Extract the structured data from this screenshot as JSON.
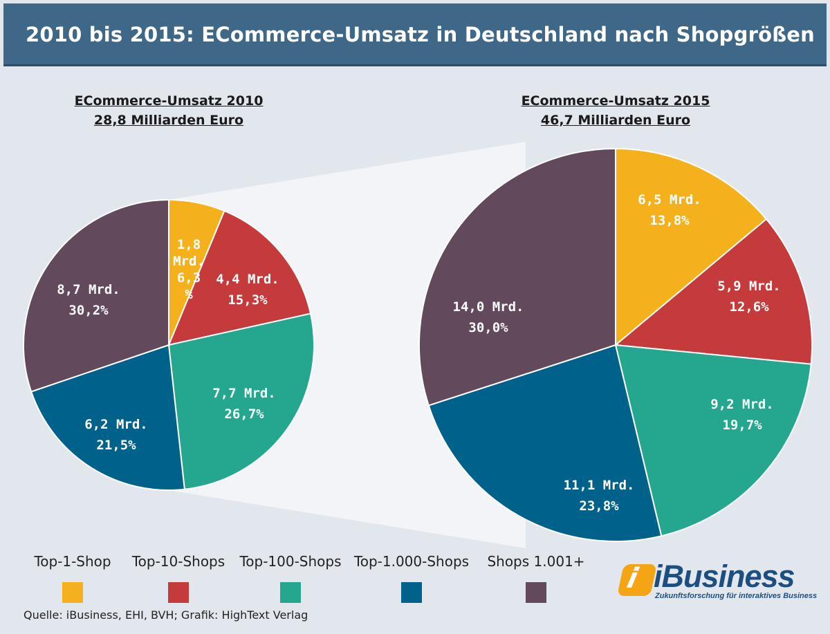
{
  "header": {
    "title": "2010 bis 2015: ECommerce-Umsatz in Deutschland nach Shopgrößen"
  },
  "colors": {
    "top1": "#f5b11c",
    "top10": "#c53a3a",
    "top100": "#25a68e",
    "top1000": "#00628a",
    "rest": "#62495c"
  },
  "chart_data": [
    {
      "type": "pie",
      "title": "ECommerce-Umsatz 2010",
      "subtitle": "28,8 Milliarden Euro",
      "slices": [
        {
          "name": "Top-1-Shop",
          "value": 1.8,
          "percent": 6.3,
          "value_label": "1,8 Mrd.",
          "percent_label": "6,3 %"
        },
        {
          "name": "Top-10-Shops",
          "value": 4.4,
          "percent": 15.3,
          "value_label": "4,4 Mrd.",
          "percent_label": "15,3%"
        },
        {
          "name": "Top-100-Shops",
          "value": 7.7,
          "percent": 26.7,
          "value_label": "7,7 Mrd.",
          "percent_label": "26,7%"
        },
        {
          "name": "Top-1.000-Shops",
          "value": 6.2,
          "percent": 21.5,
          "value_label": "6,2 Mrd.",
          "percent_label": "21,5%"
        },
        {
          "name": "Shops 1.001+",
          "value": 8.7,
          "percent": 30.2,
          "value_label": "8,7 Mrd.",
          "percent_label": "30,2%"
        }
      ]
    },
    {
      "type": "pie",
      "title": "ECommerce-Umsatz 2015",
      "subtitle": "46,7 Milliarden Euro",
      "slices": [
        {
          "name": "Top-1-Shop",
          "value": 6.5,
          "percent": 13.8,
          "value_label": "6,5 Mrd.",
          "percent_label": "13,8%"
        },
        {
          "name": "Top-10-Shops",
          "value": 5.9,
          "percent": 12.6,
          "value_label": "5,9 Mrd.",
          "percent_label": "12,6%"
        },
        {
          "name": "Top-100-Shops",
          "value": 9.2,
          "percent": 19.7,
          "value_label": "9,2 Mrd.",
          "percent_label": "19,7%"
        },
        {
          "name": "Top-1.000-Shops",
          "value": 11.1,
          "percent": 23.8,
          "value_label": "11,1 Mrd.",
          "percent_label": "23,8%"
        },
        {
          "name": "Shops 1.001+",
          "value": 14.0,
          "percent": 30.0,
          "value_label": "14,0 Mrd.",
          "percent_label": "30,0%"
        }
      ]
    }
  ],
  "legend": [
    {
      "label": "Top-1-Shop",
      "color": "#f5b11c"
    },
    {
      "label": "Top-10-Shops",
      "color": "#c53a3a"
    },
    {
      "label": "Top-100-Shops",
      "color": "#25a68e"
    },
    {
      "label": "Top-1.000-Shops",
      "color": "#00628a"
    },
    {
      "label": "Shops 1.001+",
      "color": "#62495c"
    }
  ],
  "source": "Quelle: iBusiness, EHI, BVH; Grafik: HighText Verlag",
  "logo": {
    "mark": "i",
    "name": "iBusiness",
    "tagline": "Zukunftsforschung für interaktives Business"
  }
}
